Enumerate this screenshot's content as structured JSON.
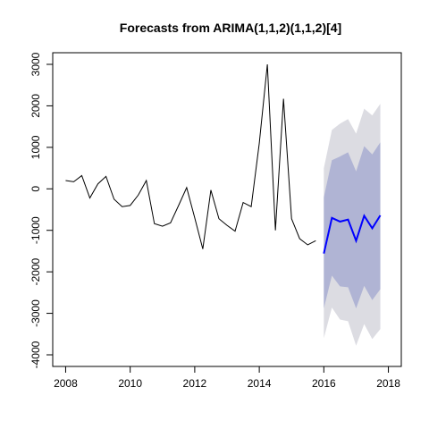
{
  "chart_data": {
    "type": "line",
    "title": "Forecasts from ARIMA(1,1,2)(1,1,2)[4]",
    "xlabel": "",
    "ylabel": "",
    "xlim": [
      2008,
      2018
    ],
    "ylim": [
      -4000,
      3000
    ],
    "xticks": [
      2008,
      2010,
      2012,
      2014,
      2016,
      2018
    ],
    "yticks": [
      -4000,
      -3000,
      -2000,
      -1000,
      0,
      1000,
      2000,
      3000
    ],
    "grid": false,
    "legend": "none",
    "colors": {
      "history": "#000000",
      "forecast": "#0000ff",
      "band_80": "#b0b4d4",
      "band_95": "#dcdce2"
    },
    "history": {
      "x": [
        2008.0,
        2008.25,
        2008.5,
        2008.75,
        2009.0,
        2009.25,
        2009.5,
        2009.75,
        2010.0,
        2010.25,
        2010.5,
        2010.75,
        2011.0,
        2011.25,
        2011.5,
        2011.75,
        2012.0,
        2012.25,
        2012.5,
        2012.75,
        2013.0,
        2013.25,
        2013.5,
        2013.75,
        2014.0,
        2014.25,
        2014.5,
        2014.75,
        2015.0,
        2015.25,
        2015.5,
        2015.75
      ],
      "y": [
        200,
        170,
        320,
        -220,
        120,
        300,
        -250,
        -430,
        -400,
        -150,
        200,
        -840,
        -900,
        -820,
        -400,
        30,
        -700,
        -1450,
        -30,
        -720,
        -880,
        -1020,
        -330,
        -430,
        1100,
        3000,
        -1000,
        2170,
        -720,
        -1200,
        -1350,
        -1250
      ]
    },
    "forecast": {
      "x": [
        2016.0,
        2016.25,
        2016.5,
        2016.75,
        2017.0,
        2017.25,
        2017.5,
        2017.75
      ],
      "mean": [
        -1560,
        -700,
        -790,
        -740,
        -1250,
        -650,
        -950,
        -640
      ],
      "lo80": [
        -2880,
        -2090,
        -2350,
        -2370,
        -2880,
        -2340,
        -2680,
        -2420
      ],
      "hi80": [
        -200,
        690,
        780,
        880,
        420,
        1030,
        830,
        1120
      ],
      "lo95": [
        -3600,
        -2860,
        -3150,
        -3190,
        -3780,
        -3260,
        -3620,
        -3380
      ],
      "hi95": [
        500,
        1420,
        1570,
        1680,
        1330,
        1930,
        1770,
        2050
      ]
    }
  }
}
